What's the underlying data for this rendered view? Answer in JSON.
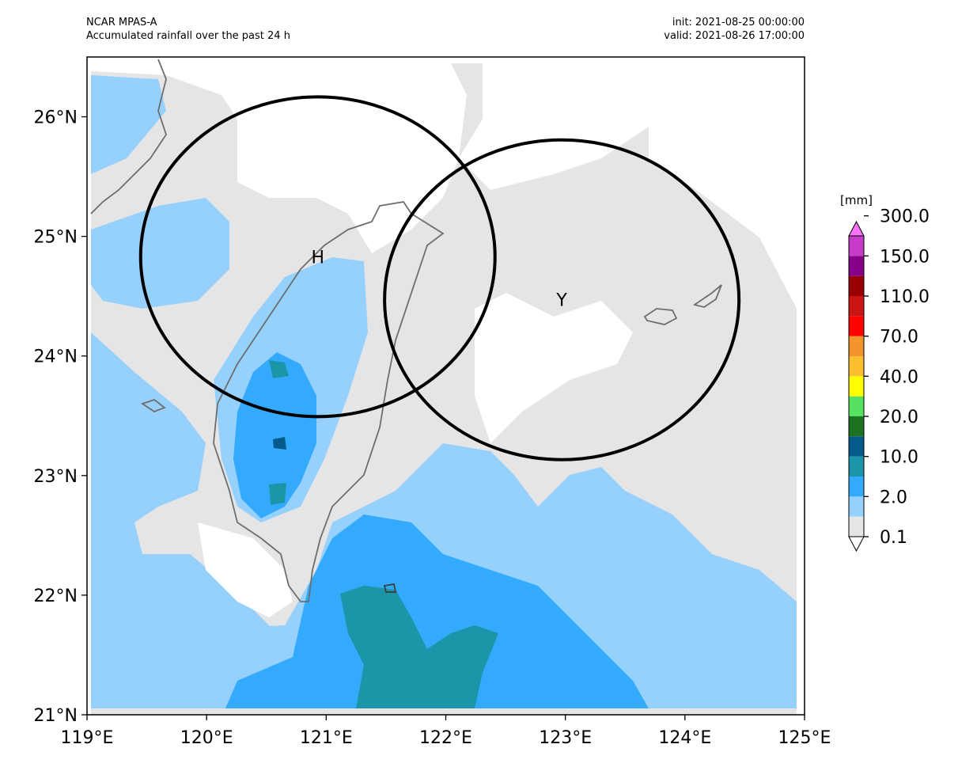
{
  "header": {
    "model": "NCAR MPAS-A",
    "description": "Accumulated rainfall over the past 24 h",
    "init": "init: 2021-08-25 00:00:00",
    "valid": "valid: 2021-08-26 17:00:00"
  },
  "axes": {
    "x_ticks": [
      "119°E",
      "120°E",
      "121°E",
      "122°E",
      "123°E",
      "124°E",
      "125°E"
    ],
    "y_ticks": [
      "21°N",
      "22°N",
      "23°N",
      "24°N",
      "25°N",
      "26°N"
    ],
    "lon_range": [
      119,
      125
    ],
    "lat_range": [
      21,
      26.5
    ]
  },
  "circles": [
    {
      "label": "H",
      "center_lon": 120.93,
      "center_lat": 24.83
    },
    {
      "label": "Y",
      "center_lon": 122.97,
      "center_lat": 24.47
    }
  ],
  "colorbar": {
    "unit": "[mm]",
    "tick_labels": [
      "0.1",
      "2.0",
      "10.0",
      "20.0",
      "40.0",
      "70.0",
      "110.0",
      "150.0",
      "300.0"
    ],
    "colors": [
      "#ffffff",
      "#e5e5e5",
      "#96d0fd",
      "#33aafe",
      "#1c95a8",
      "#055a8c",
      "#1e7121",
      "#56e260",
      "#fffe00",
      "#fbbe2f",
      "#f4942c",
      "#fe0101",
      "#cb1512",
      "#980000",
      "#870089",
      "#c73bc9",
      "#f873f7"
    ]
  },
  "colors": {
    "land_outline": "#6e6e6e",
    "circle_stroke": "#000000"
  }
}
